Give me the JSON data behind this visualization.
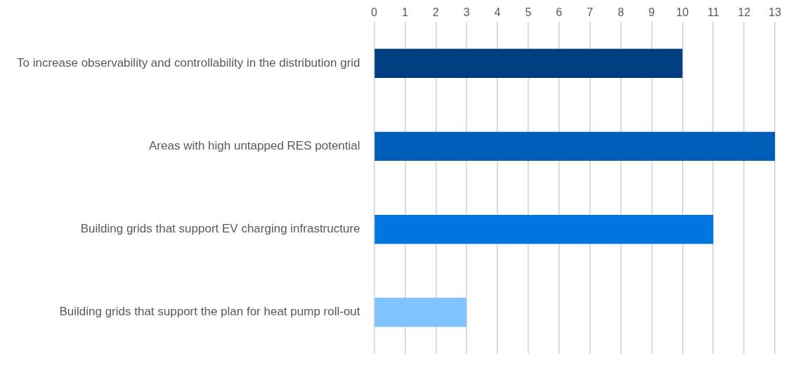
{
  "chart_data": {
    "type": "bar",
    "orientation": "horizontal",
    "categories": [
      "To increase observability and controllability in the distribution grid",
      "Areas with high untapped RES potential",
      "Building grids that support EV charging infrastructure",
      "Building grids that support the plan for heat pump roll-out"
    ],
    "values": [
      10,
      13,
      11,
      3
    ],
    "colors": [
      "#003f7f",
      "#005eb8",
      "#0075e0",
      "#80c4ff"
    ],
    "xlim": [
      0,
      13
    ],
    "xticks": [
      0,
      1,
      2,
      3,
      4,
      5,
      6,
      7,
      8,
      9,
      10,
      11,
      12,
      13
    ],
    "grid": "x",
    "legend": false
  }
}
